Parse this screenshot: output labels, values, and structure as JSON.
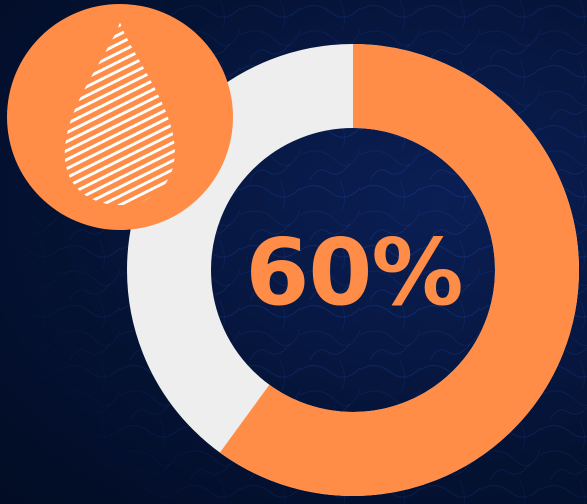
{
  "gauge": {
    "percent_label": "60%",
    "value_fraction": 0.6
  },
  "colors": {
    "accent": "#ff8c47",
    "track": "#eeeeee",
    "background": "#020c24"
  },
  "icons": {
    "badge_icon": "water-drop-icon"
  }
}
